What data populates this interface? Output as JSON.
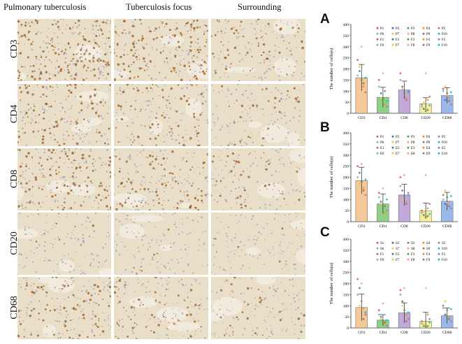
{
  "columns": [
    "Pulmonary tuberculosis",
    "Tuberculosis focus",
    "Surrounding"
  ],
  "rows": [
    "CD3",
    "CD4",
    "CD8",
    "CD20",
    "CD68"
  ],
  "row_stain": [
    0.85,
    0.45,
    0.55,
    0.05,
    0.4
  ],
  "stain_colors": {
    "brown": "#9a5a1e",
    "tissue": "#e9dfc8",
    "nuclei": "#8f86b0",
    "bar_edge": "#444444"
  },
  "chart_data": [
    {
      "panel": "A",
      "type": "bar",
      "ylabel": "The number of cells(n)",
      "ylim": [
        0,
        400
      ],
      "yticks": [
        0,
        50,
        100,
        150,
        200,
        250,
        300,
        350,
        400
      ],
      "categories": [
        "CD3",
        "CD4",
        "CD8",
        "CD20",
        "CD68"
      ],
      "values": [
        160,
        72,
        105,
        42,
        80
      ],
      "errors": [
        60,
        45,
        40,
        28,
        35
      ],
      "bar_colors": [
        "#f5c89a",
        "#8fcf86",
        "#c3a9d9",
        "#f4ee98",
        "#9ab8e8"
      ],
      "legend": [
        "P1",
        "P2",
        "P3",
        "P4",
        "P5",
        "P6",
        "P7",
        "P8",
        "P9",
        "P10",
        "F1",
        "F2",
        "F3",
        "F4",
        "F5",
        "F6",
        "F7",
        "F8",
        "F9",
        "F10"
      ],
      "points": [
        [
          240,
          190,
          150,
          120,
          95,
          170,
          210,
          300,
          135,
          160
        ],
        [
          150,
          90,
          60,
          40,
          30,
          120,
          70,
          180,
          100,
          55
        ],
        [
          180,
          120,
          90,
          70,
          100,
          150,
          110,
          140,
          60,
          95
        ],
        [
          40,
          20,
          10,
          60,
          75,
          30,
          50,
          180,
          15,
          35
        ],
        [
          110,
          60,
          90,
          70,
          40,
          100,
          120,
          80,
          55,
          95
        ]
      ]
    },
    {
      "panel": "B",
      "type": "bar",
      "ylabel": "The number of cells(n)",
      "ylim": [
        0,
        400
      ],
      "yticks": [
        0,
        50,
        100,
        150,
        200,
        250,
        300,
        350,
        400
      ],
      "categories": [
        "CD3",
        "CD4",
        "CD8",
        "CD20",
        "CD68"
      ],
      "values": [
        185,
        80,
        120,
        48,
        92
      ],
      "errors": [
        60,
        45,
        48,
        35,
        40
      ],
      "bar_colors": [
        "#f5c89a",
        "#8fcf86",
        "#c3a9d9",
        "#f4ee98",
        "#9ab8e8"
      ],
      "legend": [
        "P1",
        "P2",
        "P3",
        "P4",
        "P5",
        "P6",
        "P7",
        "P8",
        "P9",
        "P10",
        "E1",
        "E2",
        "E3",
        "E4",
        "E5",
        "E6",
        "E7",
        "E8",
        "E9",
        "E10"
      ],
      "points": [
        [
          250,
          220,
          180,
          150,
          120,
          200,
          170,
          260,
          140,
          190
        ],
        [
          130,
          90,
          60,
          40,
          50,
          110,
          80,
          150,
          70,
          100
        ],
        [
          200,
          140,
          110,
          90,
          130,
          160,
          100,
          210,
          80,
          120
        ],
        [
          50,
          30,
          20,
          60,
          80,
          40,
          45,
          210,
          25,
          35
        ],
        [
          120,
          80,
          110,
          90,
          60,
          100,
          140,
          85,
          70,
          115
        ]
      ]
    },
    {
      "panel": "C",
      "type": "bar",
      "ylabel": "The number of cells(n)",
      "ylim": [
        0,
        400
      ],
      "yticks": [
        0,
        50,
        100,
        150,
        200,
        250,
        300,
        350,
        400
      ],
      "categories": [
        "CD3",
        "CD4",
        "CD8",
        "CD20",
        "CD68"
      ],
      "values": [
        92,
        35,
        68,
        30,
        55
      ],
      "errors": [
        60,
        25,
        45,
        40,
        35
      ],
      "bar_colors": [
        "#f5c89a",
        "#8fcf86",
        "#c3a9d9",
        "#f4ee98",
        "#9ab8e8"
      ],
      "legend": [
        "S1",
        "S2",
        "S3",
        "S4",
        "S5",
        "S6",
        "S7",
        "S8",
        "S9",
        "S10",
        "F1",
        "F2",
        "F3",
        "F4",
        "F5",
        "F6",
        "F7",
        "F8",
        "F9",
        "F10"
      ],
      "points": [
        [
          220,
          180,
          120,
          90,
          60,
          150,
          100,
          200,
          40,
          70
        ],
        [
          80,
          50,
          30,
          20,
          10,
          60,
          40,
          110,
          25,
          35
        ],
        [
          170,
          120,
          80,
          60,
          40,
          150,
          100,
          180,
          30,
          70
        ],
        [
          30,
          10,
          5,
          60,
          40,
          20,
          15,
          180,
          8,
          25
        ],
        [
          100,
          60,
          80,
          50,
          30,
          90,
          120,
          70,
          40,
          85
        ]
      ]
    }
  ]
}
